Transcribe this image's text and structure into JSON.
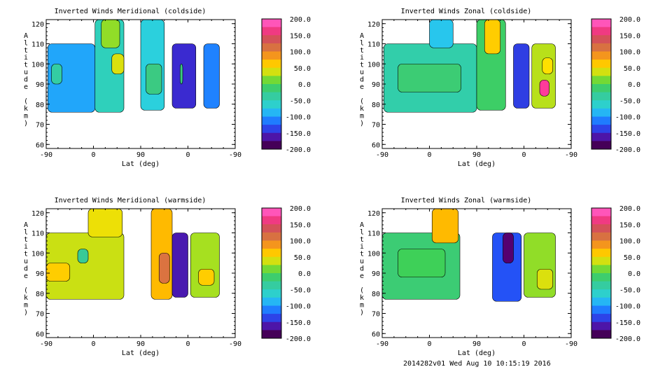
{
  "chart_data": [
    {
      "type": "heatmap",
      "title": "Inverted Winds Meridional (coldside)",
      "xlabel": "Lat (deg)",
      "ylabel": "Altitude (km)",
      "x_ticks": [
        "-90",
        "0",
        "90",
        "0",
        "-90"
      ],
      "y_ticks": [
        "60",
        "70",
        "80",
        "90",
        "100",
        "110",
        "120"
      ],
      "ylim": [
        58,
        122
      ],
      "x_range_note": "orbit-path latitude, -90 -> 90 -> -90",
      "colorbar": {
        "ticks": [
          "200.0",
          "150.0",
          "100.0",
          "50.0",
          "0.0",
          "-50.0",
          "-100.0",
          "-150.0",
          "-200.0"
        ],
        "range": [
          -200,
          200
        ]
      },
      "regions": [
        {
          "x": [
            -87,
            3
          ],
          "alt": [
            76,
            110
          ],
          "value": -95
        },
        {
          "x": [
            -80,
            -60
          ],
          "alt": [
            90,
            100
          ],
          "value": -40
        },
        {
          "x": [
            3,
            58
          ],
          "alt": [
            76,
            122
          ],
          "value": -55
        },
        {
          "x": [
            15,
            50
          ],
          "alt": [
            108,
            122
          ],
          "value": 20
        },
        {
          "x": [
            35,
            58
          ],
          "alt": [
            95,
            105
          ],
          "value": 40
        },
        {
          "x": [
            90,
            135
          ],
          "alt": [
            77,
            122
          ],
          "value": -70
        },
        {
          "x": [
            100,
            130
          ],
          "alt": [
            85,
            100
          ],
          "value": -20
        },
        {
          "x": [
            150,
            195
          ],
          "alt": [
            78,
            110
          ],
          "value": -150
        },
        {
          "x": [
            165,
            170
          ],
          "alt": [
            90,
            100
          ],
          "value": -20
        },
        {
          "x": [
            210,
            240
          ],
          "alt": [
            78,
            110
          ],
          "value": -110
        }
      ]
    },
    {
      "type": "heatmap",
      "title": "Inverted Winds Zonal (coldside)",
      "xlabel": "Lat (deg)",
      "ylabel": "Altitude (km)",
      "x_ticks": [
        "-90",
        "0",
        "90",
        "0",
        "-90"
      ],
      "y_ticks": [
        "60",
        "70",
        "80",
        "90",
        "100",
        "110",
        "120"
      ],
      "ylim": [
        58,
        122
      ],
      "x_range_note": "orbit-path latitude, -90 -> 90 -> -90",
      "colorbar": {
        "ticks": [
          "200.0",
          "150.0",
          "100.0",
          "50.0",
          "0.0",
          "-50.0",
          "-100.0",
          "-150.0",
          "-200.0"
        ],
        "range": [
          -200,
          200
        ]
      },
      "regions": [
        {
          "x": [
            -87,
            90
          ],
          "alt": [
            76,
            110
          ],
          "value": -45
        },
        {
          "x": [
            0,
            45
          ],
          "alt": [
            108,
            122
          ],
          "value": -80
        },
        {
          "x": [
            -60,
            60
          ],
          "alt": [
            86,
            100
          ],
          "value": -15
        },
        {
          "x": [
            90,
            145
          ],
          "alt": [
            77,
            122
          ],
          "value": -10
        },
        {
          "x": [
            105,
            135
          ],
          "alt": [
            105,
            122
          ],
          "value": 60
        },
        {
          "x": [
            160,
            190
          ],
          "alt": [
            78,
            110
          ],
          "value": -140
        },
        {
          "x": [
            195,
            240
          ],
          "alt": [
            78,
            110
          ],
          "value": 30
        },
        {
          "x": [
            210,
            228
          ],
          "alt": [
            84,
            92
          ],
          "value": 175
        },
        {
          "x": [
            215,
            235
          ],
          "alt": [
            95,
            103
          ],
          "value": 50
        }
      ]
    },
    {
      "type": "heatmap",
      "title": "Inverted Winds Meridional (warmside)",
      "xlabel": "Lat (deg)",
      "ylabel": "Altitude (km)",
      "x_ticks": [
        "-90",
        "0",
        "90",
        "0",
        "-90"
      ],
      "y_ticks": [
        "60",
        "70",
        "80",
        "90",
        "100",
        "110",
        "120"
      ],
      "ylim": [
        58,
        122
      ],
      "x_range_note": "orbit-path latitude, -90 -> 90 -> -90",
      "colorbar": {
        "ticks": [
          "200.0",
          "150.0",
          "100.0",
          "50.0",
          "0.0",
          "-50.0",
          "-100.0",
          "-150.0",
          "-200.0"
        ],
        "range": [
          -200,
          200
        ]
      },
      "regions": [
        {
          "x": [
            -90,
            58
          ],
          "alt": [
            77,
            110
          ],
          "value": 35
        },
        {
          "x": [
            -90,
            -45
          ],
          "alt": [
            86,
            95
          ],
          "value": 60
        },
        {
          "x": [
            -30,
            -10
          ],
          "alt": [
            95,
            102
          ],
          "value": -30
        },
        {
          "x": [
            -10,
            55
          ],
          "alt": [
            108,
            122
          ],
          "value": 45
        },
        {
          "x": [
            110,
            150
          ],
          "alt": [
            77,
            122
          ],
          "value": 70
        },
        {
          "x": [
            125,
            145
          ],
          "alt": [
            85,
            100
          ],
          "value": 110
        },
        {
          "x": [
            150,
            180
          ],
          "alt": [
            78,
            110
          ],
          "value": -160
        },
        {
          "x": [
            185,
            240
          ],
          "alt": [
            78,
            110
          ],
          "value": 25
        },
        {
          "x": [
            200,
            230
          ],
          "alt": [
            84,
            92
          ],
          "value": 60
        }
      ]
    },
    {
      "type": "heatmap",
      "title": "Inverted Winds Zonal (warmside)",
      "xlabel": "Lat (deg)",
      "ylabel": "Altitude (km)",
      "x_ticks": [
        "-90",
        "0",
        "90",
        "0",
        "-90"
      ],
      "y_ticks": [
        "60",
        "70",
        "80",
        "90",
        "100",
        "110",
        "120"
      ],
      "ylim": [
        58,
        122
      ],
      "x_range_note": "orbit-path latitude, -90 -> 90 -> -90",
      "colorbar": {
        "ticks": [
          "200.0",
          "150.0",
          "100.0",
          "50.0",
          "0.0",
          "-50.0",
          "-100.0",
          "-150.0",
          "-200.0"
        ],
        "range": [
          -200,
          200
        ]
      },
      "regions": [
        {
          "x": [
            -90,
            58
          ],
          "alt": [
            77,
            110
          ],
          "value": -15
        },
        {
          "x": [
            -60,
            30
          ],
          "alt": [
            88,
            102
          ],
          "value": -5
        },
        {
          "x": [
            5,
            55
          ],
          "alt": [
            105,
            122
          ],
          "value": 70
        },
        {
          "x": [
            120,
            175
          ],
          "alt": [
            76,
            110
          ],
          "value": -130
        },
        {
          "x": [
            140,
            160
          ],
          "alt": [
            95,
            110
          ],
          "value": -180
        },
        {
          "x": [
            180,
            240
          ],
          "alt": [
            78,
            110
          ],
          "value": 20
        },
        {
          "x": [
            205,
            235
          ],
          "alt": [
            82,
            92
          ],
          "value": 40
        }
      ]
    }
  ],
  "footer": "2014282v01 Wed Aug 10 10:15:19 2016"
}
